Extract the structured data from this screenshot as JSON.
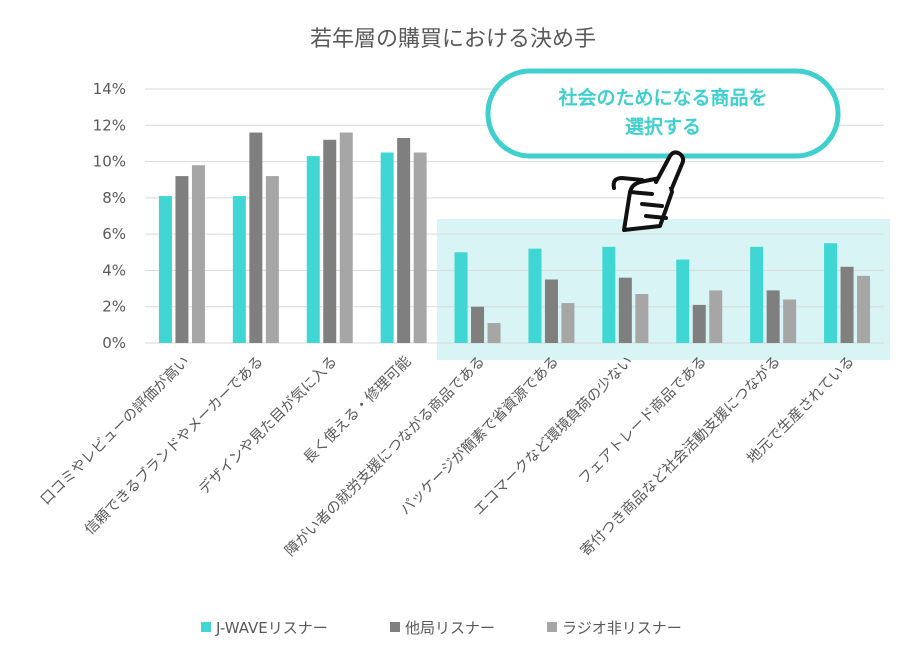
{
  "colors": {
    "series": [
      "#3fd6d3",
      "#7f7f7f",
      "#a6a6a6"
    ],
    "grid": "#d9d9d9",
    "highlight_fill": "#d8f4f4",
    "callout_border": "#3fcfcf",
    "callout_text": "#3fcfcf",
    "axis_text": "#595959"
  },
  "icons": {
    "pointer": "pointing-hand-icon"
  },
  "callout": {
    "line1": "社会のためになる商品を",
    "line2": "選択する"
  },
  "chart_data": {
    "type": "bar",
    "title": "若年層の購買における決め手",
    "xlabel": "",
    "ylabel": "",
    "ylim": [
      0,
      14
    ],
    "yticks": [
      0,
      2,
      4,
      6,
      8,
      10,
      12,
      14
    ],
    "ytick_labels": [
      "0%",
      "2%",
      "4%",
      "6%",
      "8%",
      "10%",
      "12%",
      "14%"
    ],
    "grid": true,
    "legend_position": "bottom",
    "categories": [
      "口コミやレビューの評価が高い",
      "信頼できるブランドやメーカーである",
      "デザインや見た目が気に入る",
      "長く使える・修理可能",
      "障がい者の就労支援につながる商品である",
      "パッケージが簡素で省資源である",
      "エコマークなど環境負荷の少ない",
      "フェアトレード商品である",
      "寄付つき商品など社会活動支援につながる",
      "地元で生産されている"
    ],
    "highlighted_categories": [
      4,
      5,
      6,
      7,
      8,
      9
    ],
    "series": [
      {
        "name": "J-WAVEリスナー",
        "values": [
          8.1,
          8.1,
          10.3,
          10.5,
          5.0,
          5.2,
          5.3,
          4.6,
          5.3,
          5.5
        ]
      },
      {
        "name": "他局リスナー",
        "values": [
          9.2,
          11.6,
          11.2,
          11.3,
          2.0,
          3.5,
          3.6,
          2.1,
          2.9,
          4.2
        ]
      },
      {
        "name": "ラジオ非リスナー",
        "values": [
          9.8,
          9.2,
          11.6,
          10.5,
          1.1,
          2.2,
          2.7,
          2.9,
          2.4,
          3.7
        ]
      }
    ]
  }
}
